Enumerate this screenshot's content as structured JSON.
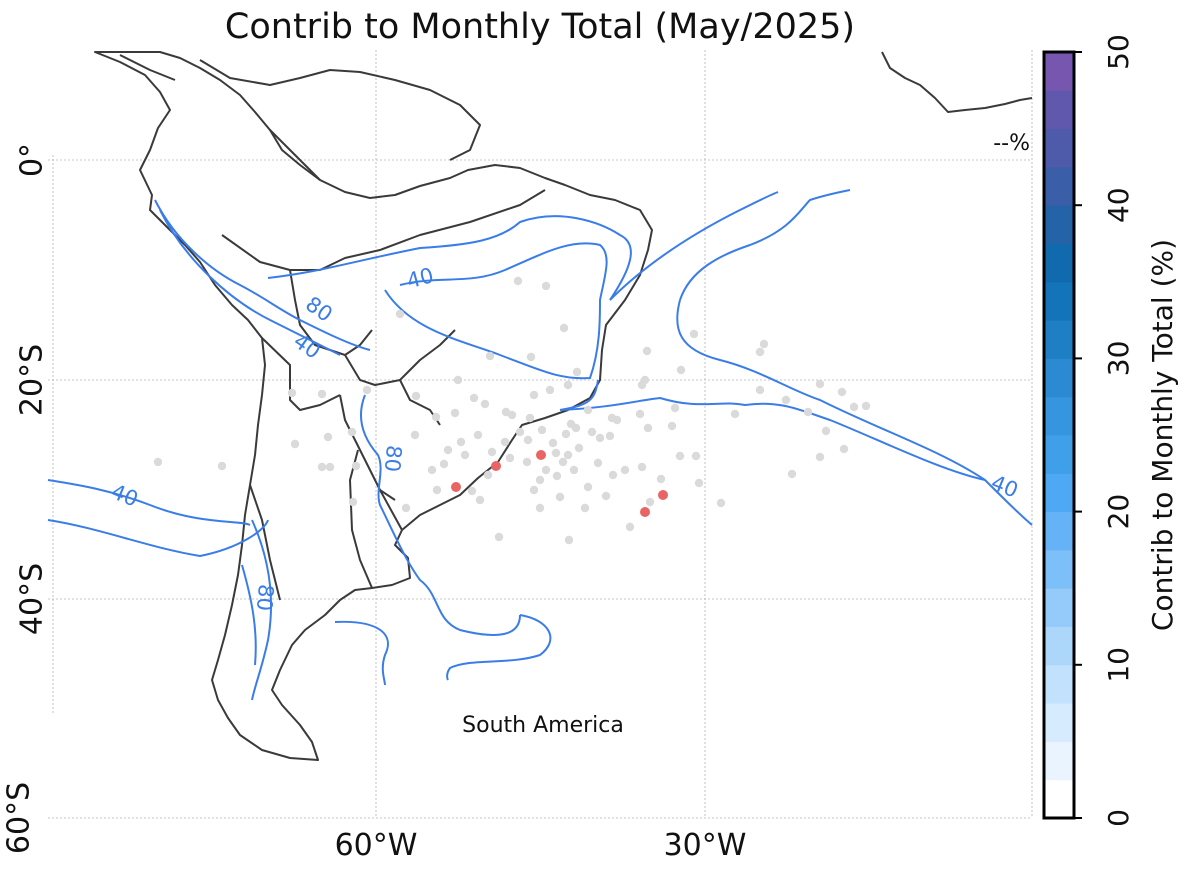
{
  "title": "Contrib to Monthly Total (May/2025)",
  "region_label": "South America",
  "percent_readout": "--%",
  "lon_ticks": [
    "60°W",
    "30°W"
  ],
  "lat_ticks": [
    "0°",
    "20°S",
    "40°S",
    "60°S"
  ],
  "colorbar": {
    "label": "Contrib to Monthly Total (%)",
    "min": 0,
    "max": 50,
    "step": 2.5,
    "ticks": [
      "0",
      "10",
      "20",
      "30",
      "40",
      "50"
    ],
    "colors": [
      "#ffffff",
      "#e9f4fe",
      "#d6ebfd",
      "#c2e1fc",
      "#acd7fb",
      "#95cbfa",
      "#7dbff8",
      "#65b3f6",
      "#4ea8f3",
      "#3f9fe9",
      "#3595de",
      "#2b8ad1",
      "#1f7fc5",
      "#1474b9",
      "#116aad",
      "#2563a8",
      "#3b5ea8",
      "#4e5aaa",
      "#6058ac",
      "#7656ae",
      "#8f58b0",
      "#a85bb2"
    ]
  },
  "contour_labels": [
    "40",
    "80",
    "40",
    "40",
    "80",
    "80",
    "40"
  ],
  "point_colors": {
    "background": "#dadada",
    "highlight": "#e96464"
  }
}
